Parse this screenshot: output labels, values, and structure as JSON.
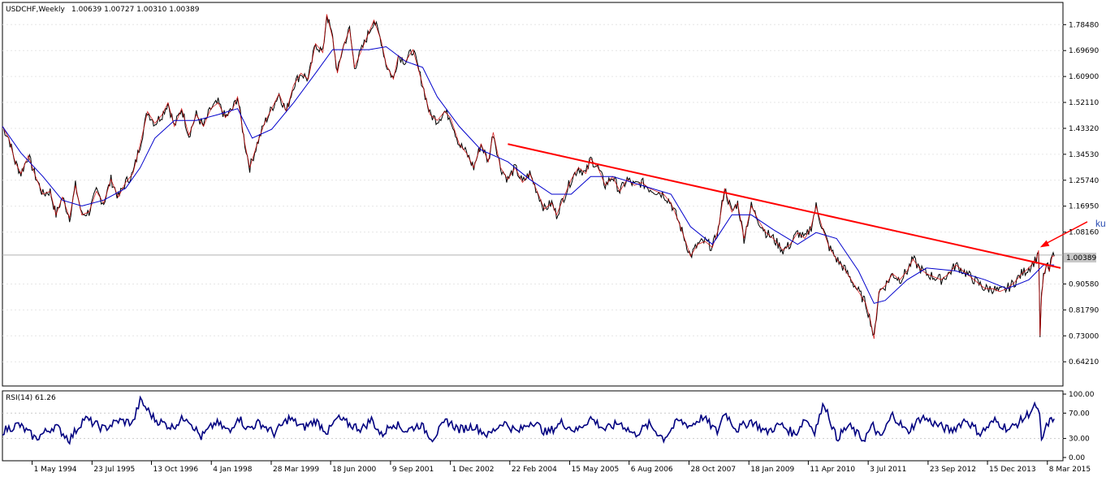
{
  "chart_data": [
    {
      "type": "line",
      "symbol_label": "USDCHF,Weekly",
      "ohlc_label": "1.00639 1.00727 1.00310 1.00389",
      "current_price_label": "1.00389",
      "y_ticks": [
        "1.78480",
        "1.69690",
        "1.60900",
        "1.52110",
        "1.43320",
        "1.34530",
        "1.25740",
        "1.16950",
        "1.08160",
        "0.90580",
        "0.81790",
        "0.73000",
        "0.64210"
      ],
      "y_tick_values": [
        1.7848,
        1.6969,
        1.609,
        1.5211,
        1.4332,
        1.3453,
        1.2574,
        1.1695,
        1.0816,
        0.9058,
        0.8179,
        0.73,
        0.6421
      ],
      "ylim": [
        0.56,
        1.86
      ],
      "current_value": 1.00389,
      "x_ticks": [
        "1 May 1994",
        "23 Jul 1995",
        "13 Oct 1996",
        "4 Jan 1998",
        "28 Mar 1999",
        "18 Jun 2000",
        "9 Sep 2001",
        "1 Dec 2002",
        "22 Feb 2004",
        "15 May 2005",
        "6 Aug 2006",
        "28 Oct 2007",
        "18 Jan 2009",
        "11 Apr 2010",
        "3 Jul 2011",
        "23 Sep 2012",
        "15 Dec 2013",
        "8 Mar 2015"
      ],
      "x_tick_years": [
        1994.33,
        1995.56,
        1996.78,
        1998.01,
        1999.24,
        2000.46,
        2001.69,
        2002.92,
        2004.14,
        2005.37,
        2006.59,
        2007.82,
        2009.05,
        2010.27,
        2011.5,
        2012.73,
        2013.95,
        2015.18
      ],
      "xlim": [
        1993.72,
        2015.5
      ],
      "price": [
        {
          "x": 1993.72,
          "y": 1.44
        },
        {
          "x": 1993.85,
          "y": 1.4
        },
        {
          "x": 1993.98,
          "y": 1.32
        },
        {
          "x": 1994.1,
          "y": 1.28
        },
        {
          "x": 1994.25,
          "y": 1.34
        },
        {
          "x": 1994.4,
          "y": 1.27
        },
        {
          "x": 1994.55,
          "y": 1.21
        },
        {
          "x": 1994.7,
          "y": 1.22
        },
        {
          "x": 1994.82,
          "y": 1.14
        },
        {
          "x": 1994.95,
          "y": 1.2
        },
        {
          "x": 1995.1,
          "y": 1.13
        },
        {
          "x": 1995.22,
          "y": 1.24
        },
        {
          "x": 1995.35,
          "y": 1.14
        },
        {
          "x": 1995.5,
          "y": 1.15
        },
        {
          "x": 1995.65,
          "y": 1.22
        },
        {
          "x": 1995.8,
          "y": 1.18
        },
        {
          "x": 1995.95,
          "y": 1.26
        },
        {
          "x": 1996.1,
          "y": 1.2
        },
        {
          "x": 1996.25,
          "y": 1.25
        },
        {
          "x": 1996.4,
          "y": 1.28
        },
        {
          "x": 1996.55,
          "y": 1.38
        },
        {
          "x": 1996.7,
          "y": 1.49
        },
        {
          "x": 1996.85,
          "y": 1.45
        },
        {
          "x": 1997.0,
          "y": 1.48
        },
        {
          "x": 1997.12,
          "y": 1.52
        },
        {
          "x": 1997.25,
          "y": 1.44
        },
        {
          "x": 1997.4,
          "y": 1.5
        },
        {
          "x": 1997.55,
          "y": 1.41
        },
        {
          "x": 1997.7,
          "y": 1.48
        },
        {
          "x": 1997.85,
          "y": 1.44
        },
        {
          "x": 1998.0,
          "y": 1.5
        },
        {
          "x": 1998.15,
          "y": 1.52
        },
        {
          "x": 1998.3,
          "y": 1.47
        },
        {
          "x": 1998.45,
          "y": 1.5
        },
        {
          "x": 1998.55,
          "y": 1.54
        },
        {
          "x": 1998.7,
          "y": 1.38
        },
        {
          "x": 1998.8,
          "y": 1.3
        },
        {
          "x": 1998.95,
          "y": 1.38
        },
        {
          "x": 1999.1,
          "y": 1.45
        },
        {
          "x": 1999.25,
          "y": 1.5
        },
        {
          "x": 1999.4,
          "y": 1.55
        },
        {
          "x": 1999.55,
          "y": 1.49
        },
        {
          "x": 1999.7,
          "y": 1.58
        },
        {
          "x": 1999.85,
          "y": 1.62
        },
        {
          "x": 2000.0,
          "y": 1.6
        },
        {
          "x": 2000.15,
          "y": 1.72
        },
        {
          "x": 2000.3,
          "y": 1.69
        },
        {
          "x": 2000.38,
          "y": 1.82
        },
        {
          "x": 2000.5,
          "y": 1.74
        },
        {
          "x": 2000.6,
          "y": 1.62
        },
        {
          "x": 2000.7,
          "y": 1.7
        },
        {
          "x": 2000.85,
          "y": 1.77
        },
        {
          "x": 2000.95,
          "y": 1.64
        },
        {
          "x": 2001.1,
          "y": 1.7
        },
        {
          "x": 2001.25,
          "y": 1.76
        },
        {
          "x": 2001.35,
          "y": 1.8
        },
        {
          "x": 2001.5,
          "y": 1.73
        },
        {
          "x": 2001.6,
          "y": 1.65
        },
        {
          "x": 2001.75,
          "y": 1.6
        },
        {
          "x": 2001.85,
          "y": 1.68
        },
        {
          "x": 2002.0,
          "y": 1.66
        },
        {
          "x": 2002.15,
          "y": 1.7
        },
        {
          "x": 2002.35,
          "y": 1.58
        },
        {
          "x": 2002.5,
          "y": 1.48
        },
        {
          "x": 2002.65,
          "y": 1.46
        },
        {
          "x": 2002.8,
          "y": 1.49
        },
        {
          "x": 2002.92,
          "y": 1.47
        },
        {
          "x": 2003.1,
          "y": 1.38
        },
        {
          "x": 2003.25,
          "y": 1.35
        },
        {
          "x": 2003.4,
          "y": 1.3
        },
        {
          "x": 2003.55,
          "y": 1.38
        },
        {
          "x": 2003.7,
          "y": 1.32
        },
        {
          "x": 2003.8,
          "y": 1.42
        },
        {
          "x": 2003.95,
          "y": 1.3
        },
        {
          "x": 2004.1,
          "y": 1.26
        },
        {
          "x": 2004.25,
          "y": 1.3
        },
        {
          "x": 2004.4,
          "y": 1.25
        },
        {
          "x": 2004.55,
          "y": 1.28
        },
        {
          "x": 2004.7,
          "y": 1.22
        },
        {
          "x": 2004.85,
          "y": 1.16
        },
        {
          "x": 2005.0,
          "y": 1.18
        },
        {
          "x": 2005.1,
          "y": 1.14
        },
        {
          "x": 2005.25,
          "y": 1.2
        },
        {
          "x": 2005.4,
          "y": 1.26
        },
        {
          "x": 2005.55,
          "y": 1.3
        },
        {
          "x": 2005.7,
          "y": 1.28
        },
        {
          "x": 2005.8,
          "y": 1.33
        },
        {
          "x": 2005.95,
          "y": 1.3
        },
        {
          "x": 2006.1,
          "y": 1.24
        },
        {
          "x": 2006.25,
          "y": 1.27
        },
        {
          "x": 2006.4,
          "y": 1.22
        },
        {
          "x": 2006.55,
          "y": 1.26
        },
        {
          "x": 2006.7,
          "y": 1.24
        },
        {
          "x": 2006.85,
          "y": 1.25
        },
        {
          "x": 2007.0,
          "y": 1.23
        },
        {
          "x": 2007.15,
          "y": 1.22
        },
        {
          "x": 2007.3,
          "y": 1.21
        },
        {
          "x": 2007.45,
          "y": 1.18
        },
        {
          "x": 2007.6,
          "y": 1.12
        },
        {
          "x": 2007.75,
          "y": 1.05
        },
        {
          "x": 2007.85,
          "y": 1.0
        },
        {
          "x": 2008.0,
          "y": 1.04
        },
        {
          "x": 2008.15,
          "y": 1.05
        },
        {
          "x": 2008.3,
          "y": 1.03
        },
        {
          "x": 2008.42,
          "y": 1.09
        },
        {
          "x": 2008.55,
          "y": 1.23
        },
        {
          "x": 2008.7,
          "y": 1.15
        },
        {
          "x": 2008.82,
          "y": 1.18
        },
        {
          "x": 2008.95,
          "y": 1.06
        },
        {
          "x": 2009.1,
          "y": 1.17
        },
        {
          "x": 2009.25,
          "y": 1.12
        },
        {
          "x": 2009.4,
          "y": 1.08
        },
        {
          "x": 2009.55,
          "y": 1.06
        },
        {
          "x": 2009.75,
          "y": 1.02
        },
        {
          "x": 2009.9,
          "y": 1.04
        },
        {
          "x": 2010.05,
          "y": 1.08
        },
        {
          "x": 2010.2,
          "y": 1.06
        },
        {
          "x": 2010.33,
          "y": 1.1
        },
        {
          "x": 2010.43,
          "y": 1.17
        },
        {
          "x": 2010.55,
          "y": 1.1
        },
        {
          "x": 2010.7,
          "y": 1.03
        },
        {
          "x": 2010.85,
          "y": 0.99
        },
        {
          "x": 2011.0,
          "y": 0.96
        },
        {
          "x": 2011.15,
          "y": 0.92
        },
        {
          "x": 2011.3,
          "y": 0.88
        },
        {
          "x": 2011.45,
          "y": 0.84
        },
        {
          "x": 2011.55,
          "y": 0.78
        },
        {
          "x": 2011.62,
          "y": 0.72
        },
        {
          "x": 2011.72,
          "y": 0.88
        },
        {
          "x": 2011.85,
          "y": 0.9
        },
        {
          "x": 2012.0,
          "y": 0.94
        },
        {
          "x": 2012.15,
          "y": 0.92
        },
        {
          "x": 2012.3,
          "y": 0.95
        },
        {
          "x": 2012.42,
          "y": 0.99
        },
        {
          "x": 2012.55,
          "y": 0.96
        },
        {
          "x": 2012.7,
          "y": 0.94
        },
        {
          "x": 2012.85,
          "y": 0.93
        },
        {
          "x": 2013.0,
          "y": 0.92
        },
        {
          "x": 2013.15,
          "y": 0.94
        },
        {
          "x": 2013.3,
          "y": 0.97
        },
        {
          "x": 2013.45,
          "y": 0.95
        },
        {
          "x": 2013.6,
          "y": 0.93
        },
        {
          "x": 2013.75,
          "y": 0.91
        },
        {
          "x": 2013.9,
          "y": 0.89
        },
        {
          "x": 2014.05,
          "y": 0.89
        },
        {
          "x": 2014.2,
          "y": 0.88
        },
        {
          "x": 2014.35,
          "y": 0.89
        },
        {
          "x": 2014.5,
          "y": 0.91
        },
        {
          "x": 2014.65,
          "y": 0.94
        },
        {
          "x": 2014.8,
          "y": 0.96
        },
        {
          "x": 2014.95,
          "y": 0.99
        },
        {
          "x": 2015.0,
          "y": 1.02
        },
        {
          "x": 2015.03,
          "y": 0.73
        },
        {
          "x": 2015.06,
          "y": 0.86
        },
        {
          "x": 2015.1,
          "y": 0.93
        },
        {
          "x": 2015.16,
          "y": 0.97
        },
        {
          "x": 2015.22,
          "y": 0.95
        },
        {
          "x": 2015.28,
          "y": 1.0
        },
        {
          "x": 2015.32,
          "y": 1.0
        }
      ],
      "ma": [
        {
          "x": 1993.72,
          "y": 1.44
        },
        {
          "x": 1994.1,
          "y": 1.35
        },
        {
          "x": 1994.55,
          "y": 1.27
        },
        {
          "x": 1994.95,
          "y": 1.19
        },
        {
          "x": 1995.35,
          "y": 1.17
        },
        {
          "x": 1995.8,
          "y": 1.19
        },
        {
          "x": 1996.25,
          "y": 1.23
        },
        {
          "x": 1996.55,
          "y": 1.3
        },
        {
          "x": 1996.85,
          "y": 1.4
        },
        {
          "x": 1997.25,
          "y": 1.46
        },
        {
          "x": 1997.7,
          "y": 1.46
        },
        {
          "x": 1998.15,
          "y": 1.48
        },
        {
          "x": 1998.55,
          "y": 1.5
        },
        {
          "x": 1998.85,
          "y": 1.4
        },
        {
          "x": 1999.25,
          "y": 1.43
        },
        {
          "x": 1999.7,
          "y": 1.52
        },
        {
          "x": 2000.15,
          "y": 1.62
        },
        {
          "x": 2000.5,
          "y": 1.7
        },
        {
          "x": 2000.85,
          "y": 1.7
        },
        {
          "x": 2001.25,
          "y": 1.7
        },
        {
          "x": 2001.6,
          "y": 1.71
        },
        {
          "x": 2002.0,
          "y": 1.66
        },
        {
          "x": 2002.35,
          "y": 1.64
        },
        {
          "x": 2002.65,
          "y": 1.54
        },
        {
          "x": 2003.1,
          "y": 1.44
        },
        {
          "x": 2003.55,
          "y": 1.36
        },
        {
          "x": 2004.1,
          "y": 1.32
        },
        {
          "x": 2004.55,
          "y": 1.26
        },
        {
          "x": 2005.0,
          "y": 1.21
        },
        {
          "x": 2005.4,
          "y": 1.21
        },
        {
          "x": 2005.8,
          "y": 1.27
        },
        {
          "x": 2006.25,
          "y": 1.27
        },
        {
          "x": 2006.85,
          "y": 1.24
        },
        {
          "x": 2007.45,
          "y": 1.21
        },
        {
          "x": 2007.85,
          "y": 1.1
        },
        {
          "x": 2008.3,
          "y": 1.04
        },
        {
          "x": 2008.7,
          "y": 1.14
        },
        {
          "x": 2009.1,
          "y": 1.14
        },
        {
          "x": 2009.55,
          "y": 1.09
        },
        {
          "x": 2010.05,
          "y": 1.04
        },
        {
          "x": 2010.43,
          "y": 1.08
        },
        {
          "x": 2010.85,
          "y": 1.06
        },
        {
          "x": 2011.3,
          "y": 0.95
        },
        {
          "x": 2011.62,
          "y": 0.84
        },
        {
          "x": 2011.85,
          "y": 0.85
        },
        {
          "x": 2012.3,
          "y": 0.92
        },
        {
          "x": 2012.7,
          "y": 0.96
        },
        {
          "x": 2013.3,
          "y": 0.95
        },
        {
          "x": 2013.9,
          "y": 0.92
        },
        {
          "x": 2014.35,
          "y": 0.89
        },
        {
          "x": 2014.8,
          "y": 0.92
        },
        {
          "x": 2015.1,
          "y": 0.97
        },
        {
          "x": 2015.32,
          "y": 0.97
        }
      ],
      "trendline": {
        "x": [
          2004.1,
          2015.45
        ],
        "y": [
          1.38,
          0.96
        ]
      },
      "annotation": {
        "text": "kurz vor der Aufwertung",
        "x": 2016.0,
        "y": 1.1
      }
    },
    {
      "type": "line",
      "label": "RSI(14) 61.26",
      "y_ticks": [
        "100.00",
        "70.00",
        "30.00",
        "0.00"
      ],
      "y_tick_values": [
        100,
        70,
        30,
        0
      ],
      "ylim": [
        0,
        100
      ],
      "x": [
        1993.72,
        1994.05,
        1994.4,
        1994.8,
        1995.1,
        1995.4,
        1995.8,
        1996.1,
        1996.4,
        1996.55,
        1996.85,
        1997.2,
        1997.5,
        1997.8,
        1998.1,
        1998.4,
        1998.55,
        1998.75,
        1999.0,
        1999.3,
        1999.6,
        1999.9,
        2000.15,
        2000.4,
        2000.6,
        2000.85,
        2001.1,
        2001.3,
        2001.5,
        2001.75,
        2002.0,
        2002.3,
        2002.55,
        2002.85,
        2003.1,
        2003.4,
        2003.7,
        2004.0,
        2004.3,
        2004.6,
        2004.9,
        2005.2,
        2005.5,
        2005.8,
        2006.1,
        2006.4,
        2006.7,
        2007.0,
        2007.3,
        2007.6,
        2007.85,
        2008.1,
        2008.4,
        2008.55,
        2008.8,
        2009.1,
        2009.4,
        2009.7,
        2010.0,
        2010.2,
        2010.4,
        2010.6,
        2010.85,
        2011.1,
        2011.4,
        2011.6,
        2011.75,
        2012.0,
        2012.3,
        2012.6,
        2012.9,
        2013.2,
        2013.5,
        2013.8,
        2014.1,
        2014.4,
        2014.7,
        2014.95,
        2015.02,
        2015.06,
        2015.12,
        2015.2,
        2015.32
      ],
      "values": [
        42,
        52,
        30,
        50,
        28,
        62,
        45,
        58,
        55,
        90,
        60,
        48,
        65,
        32,
        55,
        40,
        66,
        45,
        55,
        38,
        62,
        47,
        58,
        40,
        62,
        52,
        45,
        60,
        35,
        55,
        42,
        52,
        30,
        58,
        44,
        50,
        35,
        56,
        40,
        58,
        38,
        55,
        42,
        62,
        44,
        55,
        36,
        52,
        30,
        58,
        50,
        64,
        40,
        72,
        44,
        58,
        40,
        52,
        36,
        62,
        42,
        86,
        30,
        50,
        28,
        50,
        30,
        68,
        40,
        64,
        52,
        42,
        60,
        38,
        58,
        44,
        62,
        82,
        64,
        25,
        40,
        55,
        61
      ]
    }
  ]
}
